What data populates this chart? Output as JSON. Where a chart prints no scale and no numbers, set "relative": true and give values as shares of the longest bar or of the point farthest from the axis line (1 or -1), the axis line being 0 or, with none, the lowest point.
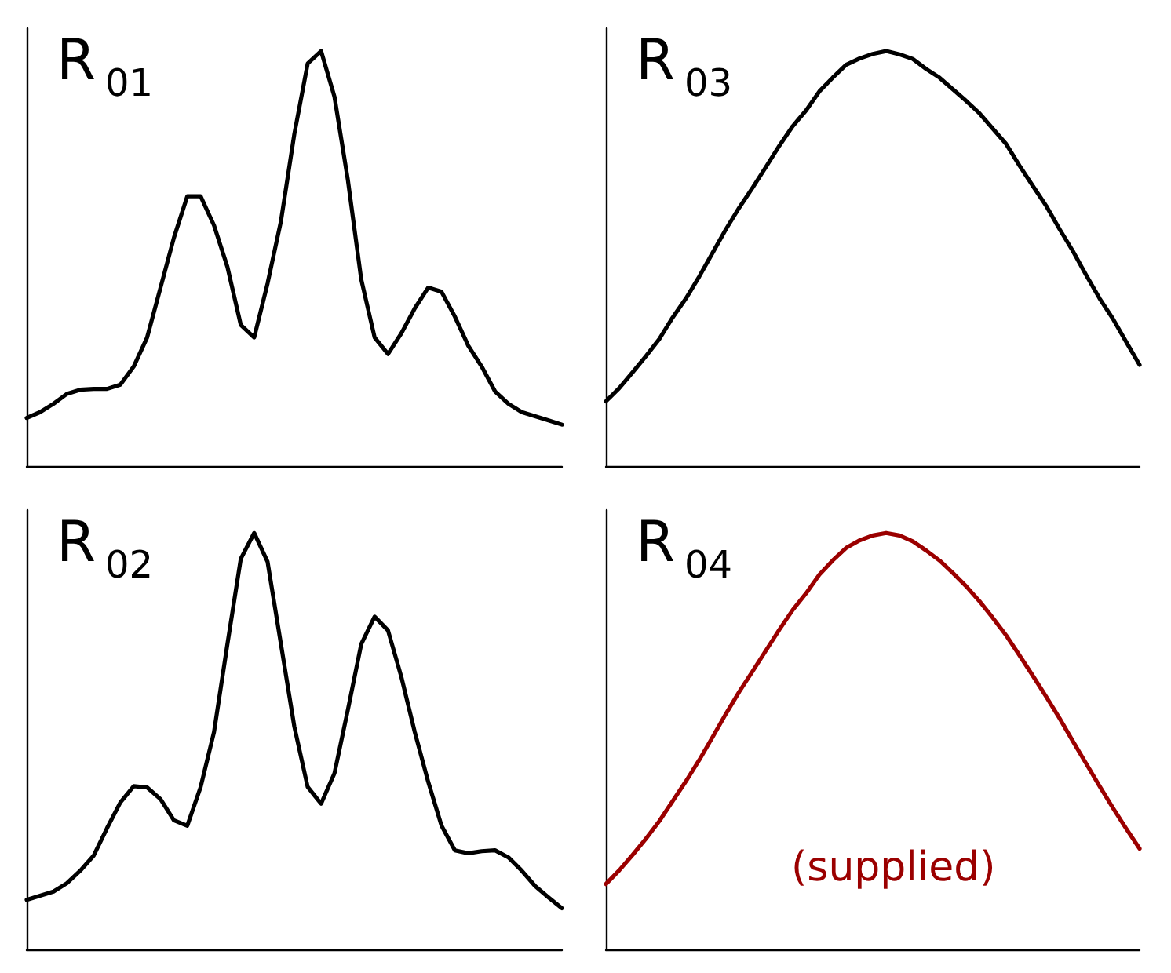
{
  "chart_data": [
    {
      "type": "line",
      "title": "R$_{01}$",
      "relative": true,
      "marker": "none",
      "categories": [
        null,
        null,
        null,
        null,
        null,
        null,
        null,
        null,
        null,
        null,
        null,
        null,
        null,
        null,
        null,
        null,
        null,
        null,
        null,
        null,
        null,
        null,
        null,
        null,
        null,
        null,
        null,
        null,
        null,
        null,
        null,
        null,
        null,
        null,
        null,
        null,
        null,
        null,
        null,
        null,
        null
      ],
      "series": [
        {
          "color": "#000000",
          "values": [
            0.116,
            0.13,
            0.15,
            0.174,
            0.184,
            0.186,
            0.186,
            0.196,
            0.24,
            0.31,
            0.43,
            0.55,
            0.65,
            0.65,
            0.58,
            0.48,
            0.34,
            0.31,
            0.44,
            0.59,
            0.8,
            0.97,
            1,
            0.89,
            0.69,
            0.45,
            0.31,
            0.27,
            0.32,
            0.38,
            0.43,
            0.42,
            0.36,
            0.29,
            0.24,
            0.18,
            0.15,
            0.13,
            0.12,
            0.11,
            0.1
          ]
        }
      ]
    },
    {
      "type": "line",
      "title": "R$_{03}$",
      "relative": true,
      "marker": "none",
      "categories": [
        null,
        null,
        null,
        null,
        null,
        null,
        null,
        null,
        null,
        null,
        null,
        null,
        null,
        null,
        null,
        null,
        null,
        null,
        null,
        null,
        null,
        null,
        null,
        null,
        null,
        null,
        null,
        null,
        null,
        null,
        null,
        null,
        null,
        null,
        null,
        null,
        null,
        null,
        null,
        null,
        null
      ],
      "series": [
        {
          "color": "#000000",
          "values": [
            0.156,
            0.188,
            0.226,
            0.265,
            0.306,
            0.358,
            0.404,
            0.457,
            0.514,
            0.571,
            0.623,
            0.671,
            0.721,
            0.772,
            0.819,
            0.857,
            0.903,
            0.936,
            0.967,
            0.982,
            0.993,
            1,
            0.992,
            0.981,
            0.957,
            0.936,
            0.908,
            0.88,
            0.85,
            0.813,
            0.776,
            0.724,
            0.675,
            0.627,
            0.571,
            0.518,
            0.46,
            0.404,
            0.355,
            0.299,
            0.244
          ]
        }
      ]
    },
    {
      "type": "line",
      "title": "R$_{02}$",
      "relative": true,
      "marker": "none",
      "categories": [
        null,
        null,
        null,
        null,
        null,
        null,
        null,
        null,
        null,
        null,
        null,
        null,
        null,
        null,
        null,
        null,
        null,
        null,
        null,
        null,
        null,
        null,
        null,
        null,
        null,
        null,
        null,
        null,
        null,
        null,
        null,
        null,
        null,
        null,
        null,
        null,
        null,
        null,
        null,
        null,
        null
      ],
      "series": [
        {
          "color": "#000000",
          "values": [
            0.119,
            0.129,
            0.139,
            0.159,
            0.189,
            0.225,
            0.291,
            0.353,
            0.392,
            0.389,
            0.361,
            0.31,
            0.297,
            0.39,
            0.522,
            0.733,
            0.938,
            1,
            0.931,
            0.733,
            0.535,
            0.39,
            0.35,
            0.423,
            0.575,
            0.733,
            0.799,
            0.766,
            0.654,
            0.522,
            0.403,
            0.297,
            0.238,
            0.231,
            0.236,
            0.238,
            0.221,
            0.189,
            0.152,
            0.125,
            0.099
          ]
        }
      ]
    },
    {
      "type": "line",
      "title": "R$_{04}$",
      "relative": true,
      "marker": "none",
      "annotations": [
        "(supplied)"
      ],
      "categories": [
        null,
        null,
        null,
        null,
        null,
        null,
        null,
        null,
        null,
        null,
        null,
        null,
        null,
        null,
        null,
        null,
        null,
        null,
        null,
        null,
        null,
        null,
        null,
        null,
        null,
        null,
        null,
        null,
        null,
        null,
        null,
        null,
        null,
        null,
        null,
        null,
        null,
        null,
        null,
        null,
        null
      ],
      "series": [
        {
          "color": "#9b0000",
          "values": [
            0.157,
            0.19,
            0.227,
            0.266,
            0.308,
            0.356,
            0.404,
            0.455,
            0.51,
            0.566,
            0.619,
            0.668,
            0.718,
            0.768,
            0.815,
            0.855,
            0.9,
            0.934,
            0.964,
            0.982,
            0.994,
            1,
            0.994,
            0.98,
            0.958,
            0.934,
            0.904,
            0.872,
            0.836,
            0.796,
            0.754,
            0.706,
            0.657,
            0.607,
            0.555,
            0.5,
            0.446,
            0.392,
            0.34,
            0.29,
            0.242
          ]
        }
      ]
    }
  ]
}
